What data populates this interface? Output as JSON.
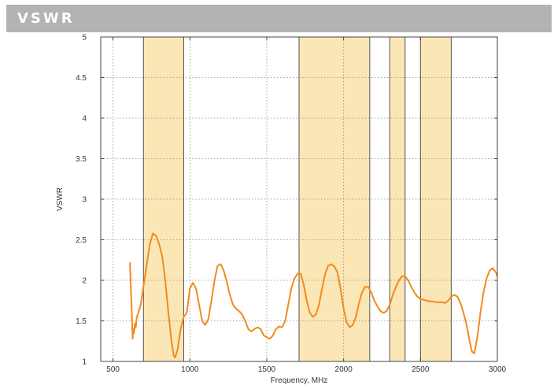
{
  "header": {
    "title": "VSWR"
  },
  "colors": {
    "band_fill": "#fbe6b5",
    "curve": "#f28a1e",
    "grid": "#8c8c8c"
  },
  "chart_data": {
    "type": "line",
    "title": "",
    "xlabel": "Frequency, MHz",
    "ylabel": "VSWR",
    "xlim": [
      420,
      3000
    ],
    "ylim": [
      1,
      5
    ],
    "x_ticks": [
      500,
      1000,
      1500,
      2000,
      2500,
      3000
    ],
    "y_ticks": [
      1,
      1.5,
      2,
      2.5,
      3,
      3.5,
      4,
      4.5,
      5
    ],
    "x_tick_labels": [
      "500",
      "1000",
      "1500",
      "2000",
      "2500",
      "3000"
    ],
    "y_tick_labels": [
      "1",
      "1.5",
      "2",
      "2.5",
      "3",
      "3.5",
      "4",
      "4.5",
      "5"
    ],
    "grid": true,
    "bands": [
      [
        698,
        960
      ],
      [
        1710,
        2170
      ],
      [
        2300,
        2400
      ],
      [
        2500,
        2700
      ]
    ],
    "series": [
      {
        "values": [
          [
            610,
            2.22
          ],
          [
            620,
            1.7
          ],
          [
            628,
            1.28
          ],
          [
            632,
            1.4
          ],
          [
            637,
            1.35
          ],
          [
            642,
            1.47
          ],
          [
            648,
            1.42
          ],
          [
            655,
            1.55
          ],
          [
            665,
            1.6
          ],
          [
            680,
            1.7
          ],
          [
            700,
            1.95
          ],
          [
            720,
            2.2
          ],
          [
            740,
            2.45
          ],
          [
            760,
            2.58
          ],
          [
            780,
            2.55
          ],
          [
            800,
            2.45
          ],
          [
            820,
            2.3
          ],
          [
            840,
            2.0
          ],
          [
            860,
            1.6
          ],
          [
            880,
            1.25
          ],
          [
            895,
            1.07
          ],
          [
            905,
            1.05
          ],
          [
            920,
            1.15
          ],
          [
            940,
            1.4
          ],
          [
            960,
            1.55
          ],
          [
            980,
            1.6
          ],
          [
            1000,
            1.9
          ],
          [
            1020,
            1.97
          ],
          [
            1040,
            1.9
          ],
          [
            1060,
            1.7
          ],
          [
            1080,
            1.5
          ],
          [
            1100,
            1.45
          ],
          [
            1120,
            1.52
          ],
          [
            1140,
            1.75
          ],
          [
            1160,
            2.0
          ],
          [
            1180,
            2.18
          ],
          [
            1200,
            2.2
          ],
          [
            1220,
            2.12
          ],
          [
            1240,
            1.98
          ],
          [
            1260,
            1.82
          ],
          [
            1280,
            1.7
          ],
          [
            1300,
            1.65
          ],
          [
            1320,
            1.62
          ],
          [
            1340,
            1.58
          ],
          [
            1360,
            1.5
          ],
          [
            1380,
            1.4
          ],
          [
            1400,
            1.37
          ],
          [
            1420,
            1.4
          ],
          [
            1440,
            1.42
          ],
          [
            1460,
            1.4
          ],
          [
            1480,
            1.32
          ],
          [
            1500,
            1.3
          ],
          [
            1520,
            1.28
          ],
          [
            1540,
            1.32
          ],
          [
            1560,
            1.4
          ],
          [
            1580,
            1.43
          ],
          [
            1600,
            1.42
          ],
          [
            1620,
            1.5
          ],
          [
            1640,
            1.7
          ],
          [
            1660,
            1.9
          ],
          [
            1680,
            2.02
          ],
          [
            1700,
            2.08
          ],
          [
            1720,
            2.08
          ],
          [
            1740,
            1.95
          ],
          [
            1760,
            1.75
          ],
          [
            1780,
            1.6
          ],
          [
            1800,
            1.55
          ],
          [
            1820,
            1.58
          ],
          [
            1840,
            1.7
          ],
          [
            1860,
            1.9
          ],
          [
            1880,
            2.08
          ],
          [
            1900,
            2.18
          ],
          [
            1920,
            2.2
          ],
          [
            1940,
            2.17
          ],
          [
            1960,
            2.1
          ],
          [
            1980,
            1.9
          ],
          [
            2000,
            1.65
          ],
          [
            2020,
            1.48
          ],
          [
            2040,
            1.42
          ],
          [
            2060,
            1.45
          ],
          [
            2080,
            1.55
          ],
          [
            2100,
            1.72
          ],
          [
            2120,
            1.85
          ],
          [
            2140,
            1.92
          ],
          [
            2160,
            1.92
          ],
          [
            2180,
            1.85
          ],
          [
            2200,
            1.75
          ],
          [
            2220,
            1.68
          ],
          [
            2240,
            1.62
          ],
          [
            2260,
            1.6
          ],
          [
            2280,
            1.62
          ],
          [
            2300,
            1.7
          ],
          [
            2320,
            1.82
          ],
          [
            2340,
            1.92
          ],
          [
            2360,
            2.0
          ],
          [
            2380,
            2.05
          ],
          [
            2400,
            2.05
          ],
          [
            2420,
            2.0
          ],
          [
            2440,
            1.92
          ],
          [
            2460,
            1.85
          ],
          [
            2480,
            1.8
          ],
          [
            2500,
            1.77
          ],
          [
            2520,
            1.76
          ],
          [
            2540,
            1.75
          ],
          [
            2560,
            1.74
          ],
          [
            2580,
            1.74
          ],
          [
            2600,
            1.73
          ],
          [
            2620,
            1.73
          ],
          [
            2640,
            1.73
          ],
          [
            2660,
            1.72
          ],
          [
            2680,
            1.75
          ],
          [
            2700,
            1.8
          ],
          [
            2720,
            1.82
          ],
          [
            2740,
            1.8
          ],
          [
            2760,
            1.72
          ],
          [
            2780,
            1.6
          ],
          [
            2800,
            1.45
          ],
          [
            2820,
            1.25
          ],
          [
            2835,
            1.12
          ],
          [
            2850,
            1.1
          ],
          [
            2870,
            1.3
          ],
          [
            2890,
            1.6
          ],
          [
            2910,
            1.85
          ],
          [
            2930,
            2.02
          ],
          [
            2950,
            2.12
          ],
          [
            2970,
            2.15
          ],
          [
            2990,
            2.1
          ],
          [
            3000,
            2.05
          ]
        ]
      }
    ]
  }
}
